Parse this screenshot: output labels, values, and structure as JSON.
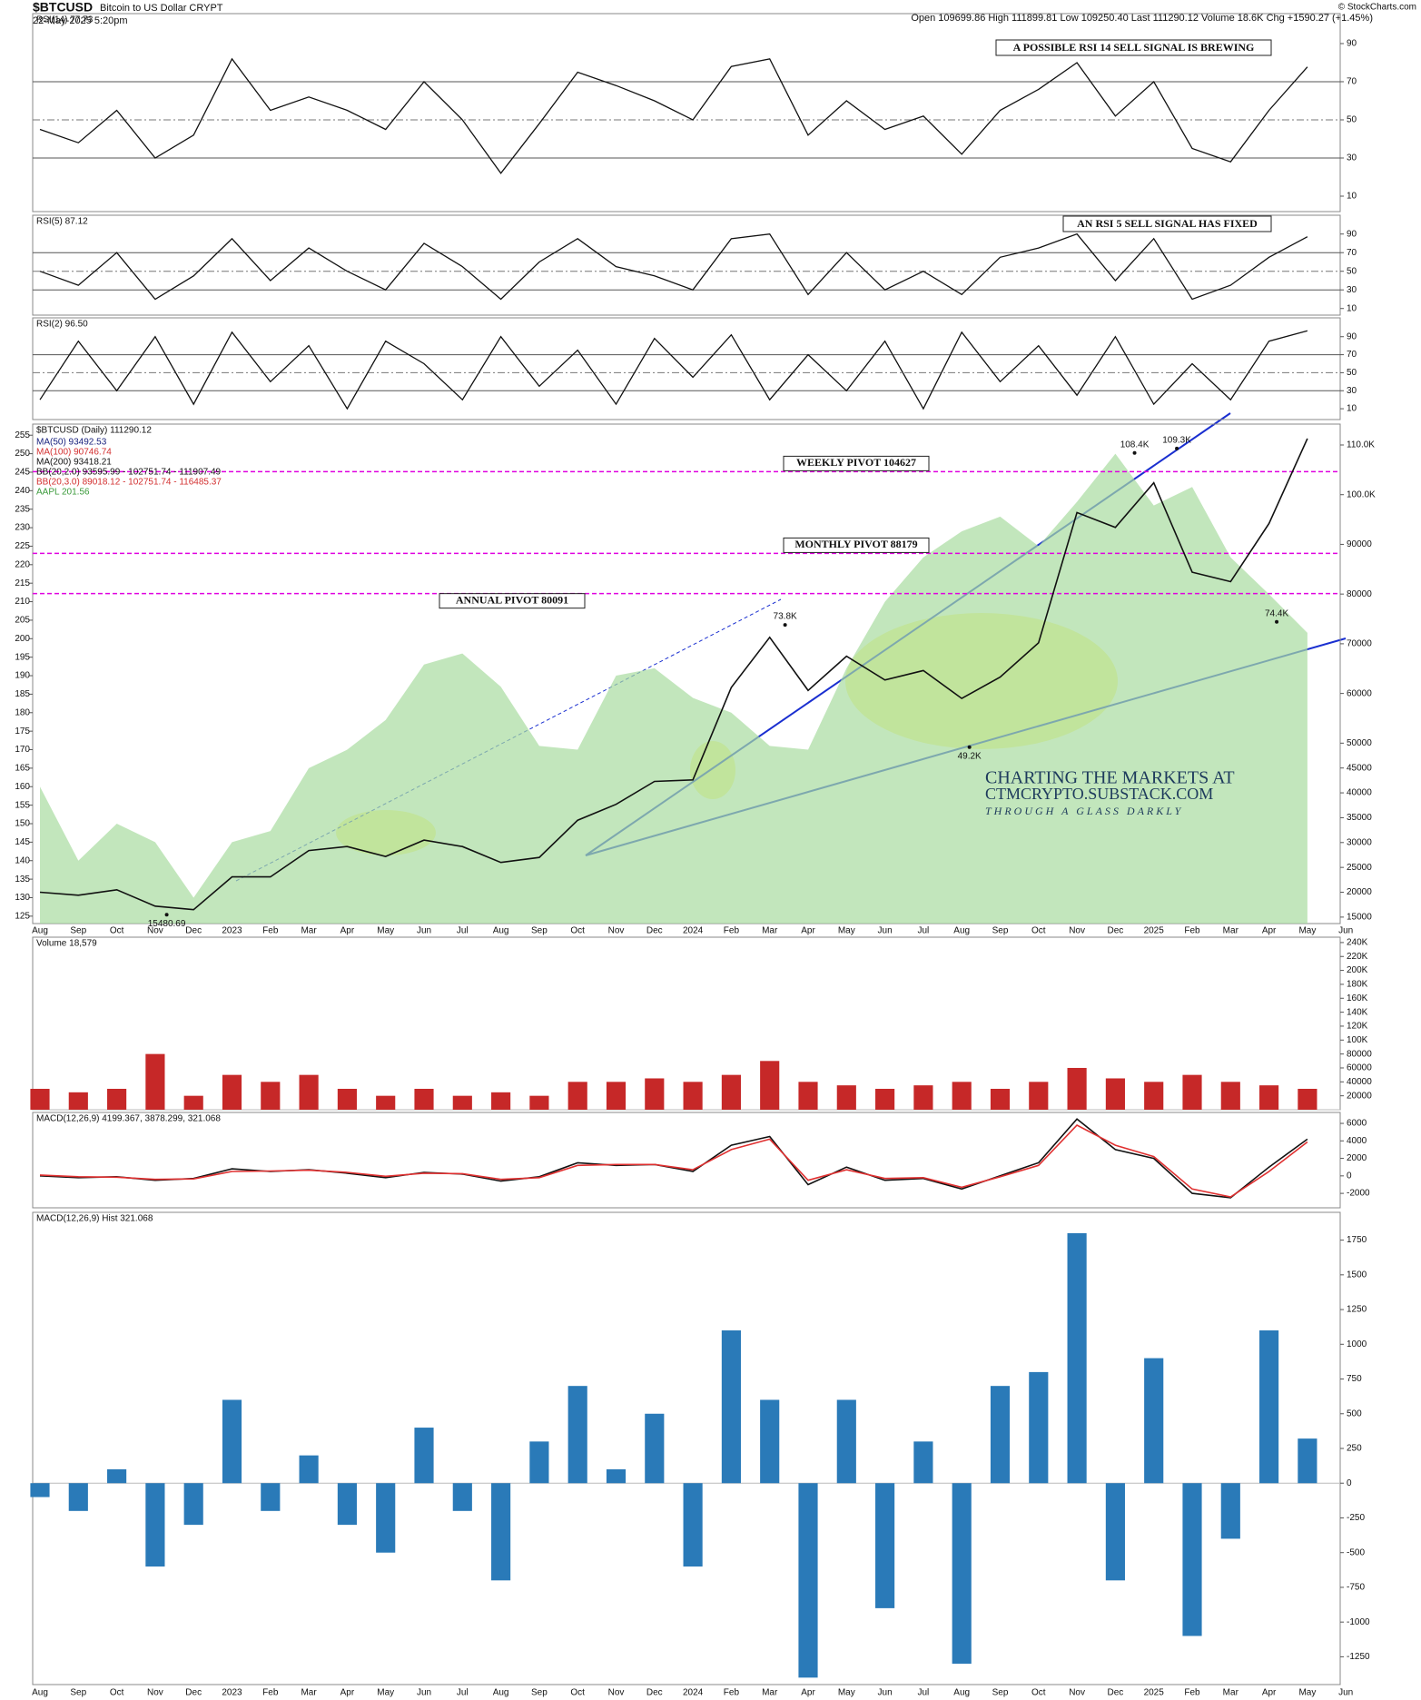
{
  "header": {
    "symbol": "$BTCUSD",
    "name": "Bitcoin to US Dollar CRYPT",
    "date": "22-May-2025 5:20pm",
    "quote": "Open 109699.86 High 111899.81 Low 109250.40 Last 111290.12 Volume 18.6K Chg +1590.27 (+1.45%)",
    "source": "© StockCharts.com"
  },
  "x_axis": {
    "categories": [
      "Aug",
      "Sep",
      "Oct",
      "Nov",
      "Dec",
      "2023",
      "Feb",
      "Mar",
      "Apr",
      "May",
      "Jun",
      "Jul",
      "Aug",
      "Sep",
      "Oct",
      "Nov",
      "Dec",
      "2024",
      "Feb",
      "Mar",
      "Apr",
      "May",
      "Jun",
      "Jul",
      "Aug",
      "Sep",
      "Oct",
      "Nov",
      "Dec",
      "2025",
      "Feb",
      "Mar",
      "Apr",
      "May",
      "Jun"
    ]
  },
  "chart_data": [
    {
      "type": "line",
      "title": "RSI(14) 77.73",
      "color": "#111111",
      "ylim": [
        1.9,
        105.7
      ],
      "yticks": [
        10,
        30,
        50,
        70,
        90
      ],
      "reference_lines": [
        30,
        70
      ],
      "midline": 50,
      "annotation": "A POSSIBLE RSI 14 SELL SIGNAL IS BREWING",
      "values": [
        45,
        38,
        55,
        30,
        42,
        82,
        55,
        62,
        55,
        45,
        70,
        50,
        22,
        48,
        75,
        68,
        60,
        50,
        78,
        82,
        42,
        60,
        45,
        52,
        32,
        55,
        66,
        80,
        52,
        70,
        35,
        28,
        55,
        77.73,
        null
      ]
    },
    {
      "type": "line",
      "title": "RSI(5) 87.12",
      "color": "#111111",
      "ylim": [
        2.9,
        110.2
      ],
      "yticks": [
        10,
        30,
        50,
        70,
        90
      ],
      "reference_lines": [
        30,
        70
      ],
      "midline": 50,
      "annotation": "AN RSI 5 SELL SIGNAL HAS FIXED",
      "values": [
        50,
        35,
        70,
        20,
        45,
        85,
        40,
        75,
        50,
        30,
        80,
        55,
        20,
        60,
        85,
        55,
        45,
        30,
        85,
        90,
        25,
        70,
        30,
        50,
        25,
        65,
        75,
        90,
        40,
        85,
        20,
        35,
        65,
        87.12,
        null
      ]
    },
    {
      "type": "line",
      "title": "RSI(2) 96.50",
      "color": "#111111",
      "ylim": [
        -2,
        110.9
      ],
      "yticks": [
        10,
        30,
        50,
        70,
        90
      ],
      "reference_lines": [
        30,
        70
      ],
      "midline": 50,
      "values": [
        20,
        85,
        30,
        90,
        15,
        95,
        40,
        80,
        10,
        85,
        60,
        20,
        90,
        35,
        75,
        15,
        88,
        45,
        92,
        20,
        70,
        30,
        85,
        10,
        95,
        40,
        80,
        25,
        90,
        15,
        60,
        20,
        85,
        96.5,
        null
      ]
    },
    {
      "type": "price",
      "title": "$BTCUSD (Daily) 111290.12",
      "color": "#111111",
      "legend": [
        {
          "label": "MA(50) 93492.53",
          "color": "#1a237e"
        },
        {
          "label": "MA(100) 90746.74",
          "color": "#d32f2f"
        },
        {
          "label": "MA(200) 93418.21",
          "color": "#111111"
        },
        {
          "label": "BB(20,2.0) 93595.99 - 102751.74 - 111907.49",
          "color": "#111111"
        },
        {
          "label": "BB(20,3.0) 89018.12 - 102751.74 - 116485.37",
          "color": "#d32f2f"
        },
        {
          "label": "AAPL 201.56",
          "color": "#3a9a3a"
        }
      ],
      "ylim": [
        13700,
        114200
      ],
      "yticks": [
        15000,
        20000,
        25000,
        30000,
        35000,
        40000,
        45000,
        50000,
        60000,
        70000,
        80000,
        90000,
        {
          "value": 100000,
          "label": "100.0K"
        },
        {
          "value": 110000,
          "label": "110.0K"
        }
      ],
      "y2lim": [
        123,
        258
      ],
      "y2ticks": [
        125,
        130,
        135,
        140,
        145,
        150,
        155,
        160,
        165,
        170,
        175,
        180,
        185,
        190,
        195,
        200,
        205,
        210,
        215,
        220,
        225,
        230,
        235,
        240,
        245,
        250,
        255
      ],
      "values": [
        20000,
        19400,
        20500,
        17200,
        16500,
        23100,
        23100,
        28400,
        29200,
        27200,
        30500,
        29200,
        26000,
        27000,
        34500,
        37700,
        42300,
        42600,
        61200,
        71300,
        60600,
        67500,
        62700,
        64600,
        59000,
        63300,
        70200,
        96400,
        93400,
        102400,
        84400,
        82500,
        94200,
        111290.12,
        null
      ],
      "aapl": {
        "color": "#a8dba0",
        "values": [
          160,
          140,
          150,
          145,
          130,
          145,
          148,
          165,
          170,
          178,
          193,
          196,
          187,
          171,
          170,
          190,
          192,
          184,
          180,
          171,
          170,
          192,
          210,
          222,
          229,
          233,
          225,
          237,
          250,
          236,
          241,
          222,
          212,
          201.56,
          null
        ]
      },
      "pivots": [
        {
          "label": "WEEKLY PIVOT 104627",
          "value": 104627
        },
        {
          "label": "MONTHLY PIVOT 88179",
          "value": 88179
        },
        {
          "label": "ANNUAL PIVOT 80091",
          "value": 80091
        }
      ],
      "pivot_color": "#e000e0",
      "point_labels": [
        {
          "label": "15480.69",
          "value": 15480.69,
          "x": 3.3
        },
        {
          "label": "73.8K",
          "value": 73800,
          "x": 19.4
        },
        {
          "label": "49.2K",
          "value": 49200,
          "x": 24.2
        },
        {
          "label": "108.4K",
          "value": 108400,
          "x": 28.5
        },
        {
          "label": "109.3K",
          "value": 109300,
          "x": 29.6
        },
        {
          "label": "74.4K",
          "value": 74400,
          "x": 32.2
        }
      ],
      "watermark": [
        "CHARTING THE MARKETS AT",
        "CTMCRYPTO.SUBSTACK.COM",
        "THROUGH A GLASS DARKLY"
      ]
    },
    {
      "type": "bar",
      "title": "Volume 18,579",
      "color": "#c62828",
      "ylim": [
        0,
        247700
      ],
      "yticks": [
        20000,
        40000,
        60000,
        80000,
        {
          "value": 100000,
          "label": "100K"
        },
        {
          "value": 120000,
          "label": "120K"
        },
        {
          "value": 140000,
          "label": "140K"
        },
        {
          "value": 160000,
          "label": "160K"
        },
        {
          "value": 180000,
          "label": "180K"
        },
        {
          "value": 200000,
          "label": "200K"
        },
        {
          "value": 220000,
          "label": "220K"
        },
        {
          "value": 240000,
          "label": "240K"
        }
      ],
      "values": [
        30000,
        25000,
        30000,
        80000,
        20000,
        50000,
        40000,
        50000,
        30000,
        20000,
        30000,
        20000,
        25000,
        20000,
        40000,
        40000,
        45000,
        40000,
        50000,
        70000,
        40000,
        35000,
        30000,
        35000,
        40000,
        30000,
        40000,
        60000,
        45000,
        40000,
        50000,
        40000,
        35000,
        30000,
        null
      ]
    },
    {
      "type": "line",
      "title": "MACD(12,26,9) 4199.367, 3878.299, 321.068",
      "ylim": [
        -3650,
        7250
      ],
      "yticks": [
        -2000,
        0,
        2000,
        4000,
        6000
      ],
      "series": [
        {
          "color": "#111111",
          "values": [
            0,
            -200,
            -100,
            -500,
            -300,
            800,
            500,
            700,
            300,
            -200,
            400,
            200,
            -600,
            -100,
            1500,
            1200,
            1300,
            500,
            3500,
            4500,
            -1000,
            1000,
            -500,
            -300,
            -1500,
            0,
            1500,
            6500,
            3000,
            2000,
            -2000,
            -2500,
            1000,
            4199.367,
            null
          ]
        },
        {
          "color": "#e03030",
          "values": [
            100,
            -100,
            -150,
            -400,
            -350,
            500,
            550,
            650,
            400,
            -50,
            300,
            250,
            -400,
            -200,
            1200,
            1300,
            1300,
            700,
            3000,
            4200,
            -500,
            700,
            -300,
            -200,
            -1300,
            -100,
            1200,
            5800,
            3500,
            2200,
            -1500,
            -2400,
            500,
            3878.299,
            null
          ]
        }
      ]
    },
    {
      "type": "bar",
      "title": "MACD(12,26,9) Hist 321.068",
      "color": "#2a7ab8",
      "ylim": [
        -1450,
        1950
      ],
      "yticks": [
        -1250,
        -1000,
        -750,
        -500,
        -250,
        0,
        250,
        500,
        750,
        1000,
        1250,
        1500,
        1750
      ],
      "values": [
        -100,
        -200,
        100,
        -600,
        -300,
        600,
        -200,
        200,
        -300,
        -500,
        400,
        -200,
        -700,
        300,
        700,
        100,
        500,
        -600,
        1100,
        600,
        -1400,
        600,
        -900,
        300,
        -1300,
        700,
        800,
        1800,
        -700,
        900,
        -1100,
        -400,
        1100,
        321.068,
        null
      ]
    }
  ]
}
